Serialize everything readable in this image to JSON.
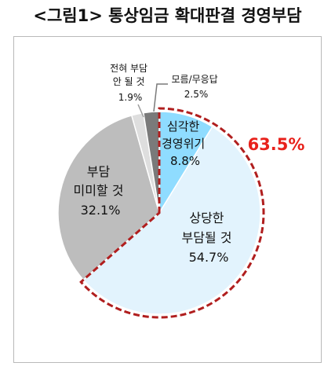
{
  "title": "<그림1> 통상임금 확대판결 경영부담",
  "chart_data": {
    "type": "pie",
    "title": "<그림1> 통상임금 확대판결 경영부담",
    "start_angle_deg": 0,
    "direction": "clockwise",
    "slices": [
      {
        "lines": [
          "심각한",
          "경영위기"
        ],
        "value": 8.8,
        "value_label": "8.8%",
        "color": "#8fdcff"
      },
      {
        "lines": [
          "상당한",
          "부담될 것"
        ],
        "value": 54.7,
        "value_label": "54.7%",
        "color": "#e2f3fd"
      },
      {
        "lines": [
          "부담",
          "미미할 것"
        ],
        "value": 32.1,
        "value_label": "32.1%",
        "color": "#bdbdbd"
      },
      {
        "lines": [
          "전혀 부담",
          "안 될 것"
        ],
        "value": 1.9,
        "value_label": "1.9%",
        "color": "#dedede"
      },
      {
        "lines": [
          "모름/무응답"
        ],
        "value": 2.5,
        "value_label": "2.5%",
        "color": "#7a7a7a"
      }
    ],
    "highlight": {
      "value": 63.5,
      "label": "63.5%",
      "color": "#e8211b",
      "covers": [
        0,
        1
      ]
    }
  }
}
